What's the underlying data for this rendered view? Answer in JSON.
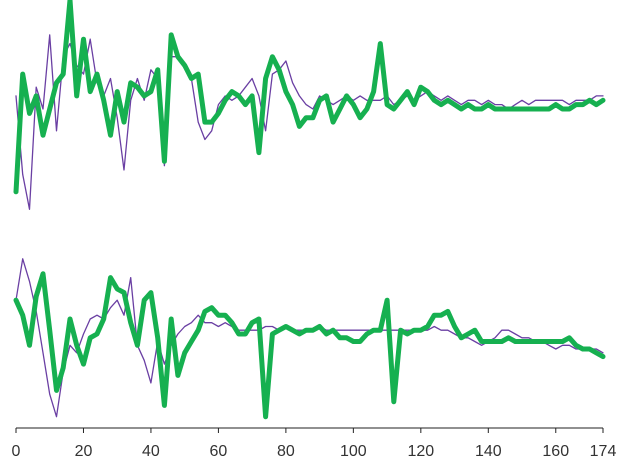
{
  "chart_data": {
    "type": "line",
    "grid": false,
    "legend": "none",
    "xlim": [
      0,
      174
    ],
    "x_ticks": [
      0,
      20,
      40,
      60,
      80,
      100,
      120,
      140,
      160,
      174
    ],
    "x_tick_labels": [
      "0",
      "20",
      "40",
      "60",
      "80",
      "100",
      "120",
      "140",
      "160",
      "174"
    ],
    "colors": {
      "thin": "#6a3fa3",
      "thick": "#16b050",
      "axis": "#222222"
    },
    "panels": [
      {
        "ylim": [
          -2.5,
          2.5
        ],
        "series": [
          {
            "role": "thin",
            "x": [
              0,
              2,
              4,
              6,
              8,
              10,
              12,
              14,
              16,
              18,
              20,
              22,
              24,
              26,
              28,
              30,
              32,
              34,
              36,
              38,
              40,
              42,
              44,
              46,
              48,
              50,
              52,
              54,
              56,
              58,
              60,
              62,
              64,
              66,
              68,
              70,
              72,
              74,
              76,
              78,
              80,
              82,
              84,
              86,
              88,
              90,
              92,
              94,
              96,
              98,
              100,
              102,
              104,
              106,
              108,
              110,
              112,
              114,
              116,
              118,
              120,
              122,
              124,
              126,
              128,
              130,
              132,
              134,
              136,
              138,
              140,
              142,
              144,
              146,
              148,
              150,
              152,
              154,
              156,
              158,
              160,
              162,
              164,
              166,
              168,
              170,
              172,
              174
            ],
            "y": [
              0.3,
              -1.5,
              -2.3,
              0.5,
              0.0,
              1.7,
              -0.5,
              1.2,
              1.5,
              1.0,
              0.8,
              1.6,
              0.6,
              0.3,
              0.7,
              -0.2,
              -1.4,
              0.2,
              0.7,
              0.2,
              0.9,
              0.7,
              -1.3,
              1.2,
              1.2,
              1.0,
              0.7,
              -0.3,
              -0.7,
              -0.5,
              0.1,
              0.3,
              0.2,
              0.3,
              0.5,
              0.7,
              0.3,
              -0.5,
              0.8,
              0.9,
              1.1,
              0.6,
              0.3,
              0.1,
              0.0,
              0.3,
              0.2,
              0.1,
              0.2,
              0.3,
              0.2,
              0.3,
              0.2,
              0.2,
              0.2,
              0.3,
              0.1,
              0.2,
              0.3,
              0.2,
              0.3,
              0.4,
              0.3,
              0.2,
              0.3,
              0.2,
              0.1,
              0.2,
              0.2,
              0.1,
              0.2,
              0.1,
              0.1,
              0.0,
              0.1,
              0.2,
              0.1,
              0.2,
              0.2,
              0.2,
              0.2,
              0.2,
              0.1,
              0.2,
              0.2,
              0.2,
              0.3,
              0.3
            ]
          },
          {
            "role": "thick",
            "x": [
              0,
              2,
              4,
              6,
              8,
              10,
              12,
              14,
              16,
              18,
              20,
              22,
              24,
              26,
              28,
              30,
              32,
              34,
              36,
              38,
              40,
              42,
              44,
              46,
              48,
              50,
              52,
              54,
              56,
              58,
              60,
              62,
              64,
              66,
              68,
              70,
              72,
              74,
              76,
              78,
              80,
              82,
              84,
              86,
              88,
              90,
              92,
              94,
              96,
              98,
              100,
              102,
              104,
              106,
              108,
              110,
              112,
              114,
              116,
              118,
              120,
              122,
              124,
              126,
              128,
              130,
              132,
              134,
              136,
              138,
              140,
              142,
              144,
              146,
              148,
              150,
              152,
              154,
              156,
              158,
              160,
              162,
              164,
              166,
              168,
              170,
              172,
              174
            ],
            "y": [
              -1.9,
              0.8,
              -0.1,
              0.3,
              -0.6,
              0.0,
              0.6,
              0.8,
              2.5,
              0.3,
              1.6,
              0.4,
              0.8,
              0.2,
              -0.6,
              0.4,
              -0.3,
              0.6,
              0.5,
              0.3,
              0.4,
              0.9,
              -1.2,
              1.7,
              1.2,
              1.0,
              0.7,
              0.8,
              -0.3,
              -0.3,
              -0.1,
              0.2,
              0.4,
              0.3,
              0.1,
              0.3,
              -1.0,
              0.7,
              1.2,
              0.9,
              0.4,
              0.1,
              -0.4,
              -0.2,
              -0.2,
              0.2,
              0.3,
              -0.3,
              0.0,
              0.3,
              0.1,
              -0.2,
              0.0,
              0.4,
              1.5,
              0.1,
              0.0,
              0.2,
              0.4,
              0.1,
              0.5,
              0.4,
              0.2,
              0.1,
              0.2,
              0.1,
              0.0,
              0.1,
              0.0,
              0.0,
              0.1,
              0.0,
              0.0,
              0.0,
              0.0,
              0.0,
              0.0,
              0.0,
              0.0,
              0.0,
              0.1,
              0.0,
              0.0,
              0.1,
              0.1,
              0.2,
              0.1,
              0.2
            ]
          }
        ]
      },
      {
        "ylim": [
          -2.5,
          2.5
        ],
        "series": [
          {
            "role": "thin",
            "x": [
              0,
              2,
              4,
              6,
              8,
              10,
              12,
              14,
              16,
              18,
              20,
              22,
              24,
              26,
              28,
              30,
              32,
              34,
              36,
              38,
              40,
              42,
              44,
              46,
              48,
              50,
              52,
              54,
              56,
              58,
              60,
              62,
              64,
              66,
              68,
              70,
              72,
              74,
              76,
              78,
              80,
              82,
              84,
              86,
              88,
              90,
              92,
              94,
              96,
              98,
              100,
              102,
              104,
              106,
              108,
              110,
              112,
              114,
              116,
              118,
              120,
              122,
              124,
              126,
              128,
              130,
              132,
              134,
              136,
              138,
              140,
              142,
              144,
              146,
              148,
              150,
              152,
              154,
              156,
              158,
              160,
              162,
              164,
              166,
              168,
              170,
              172,
              174
            ],
            "y": [
              0.9,
              2.0,
              1.4,
              0.6,
              -0.5,
              -1.6,
              -2.2,
              -1.0,
              -0.3,
              -0.5,
              0.0,
              0.4,
              0.5,
              0.4,
              0.7,
              0.9,
              0.5,
              1.5,
              -0.3,
              -0.7,
              -1.3,
              -0.2,
              -0.8,
              -0.3,
              0.0,
              0.2,
              0.3,
              0.5,
              0.3,
              0.3,
              0.2,
              0.3,
              0.2,
              0.1,
              0.1,
              0.1,
              0.1,
              0.2,
              0.2,
              0.1,
              0.2,
              0.1,
              0.1,
              0.1,
              0.1,
              0.2,
              0.1,
              0.1,
              0.1,
              0.1,
              0.1,
              0.1,
              0.1,
              0.1,
              0.1,
              0.1,
              0.1,
              0.1,
              0.1,
              0.1,
              0.1,
              0.1,
              0.2,
              0.1,
              0.1,
              0.0,
              -0.1,
              -0.1,
              -0.2,
              -0.3,
              -0.2,
              -0.1,
              0.1,
              0.1,
              0.0,
              -0.1,
              -0.1,
              -0.2,
              -0.2,
              -0.3,
              -0.4,
              -0.3,
              -0.3,
              -0.4,
              -0.4,
              -0.4,
              -0.4,
              -0.5
            ]
          },
          {
            "role": "thick",
            "x": [
              0,
              2,
              4,
              6,
              8,
              10,
              12,
              14,
              16,
              18,
              20,
              22,
              24,
              26,
              28,
              30,
              32,
              34,
              36,
              38,
              40,
              42,
              44,
              46,
              48,
              50,
              52,
              54,
              56,
              58,
              60,
              62,
              64,
              66,
              68,
              70,
              72,
              74,
              76,
              78,
              80,
              82,
              84,
              86,
              88,
              90,
              92,
              94,
              96,
              98,
              100,
              102,
              104,
              106,
              108,
              110,
              112,
              114,
              116,
              118,
              120,
              122,
              124,
              126,
              128,
              130,
              132,
              134,
              136,
              138,
              140,
              142,
              144,
              146,
              148,
              150,
              152,
              154,
              156,
              158,
              160,
              162,
              164,
              166,
              168,
              170,
              172,
              174
            ],
            "y": [
              0.9,
              0.5,
              -0.3,
              1.0,
              1.6,
              0.1,
              -1.5,
              -0.9,
              0.4,
              -0.3,
              -0.8,
              -0.1,
              0.0,
              0.4,
              1.5,
              1.2,
              1.1,
              0.3,
              -0.3,
              0.9,
              1.1,
              -0.1,
              -1.9,
              0.4,
              -1.1,
              -0.5,
              -0.2,
              0.1,
              0.6,
              0.7,
              0.5,
              0.5,
              0.3,
              0.0,
              0.0,
              0.3,
              0.4,
              -2.2,
              0.0,
              0.1,
              0.2,
              0.1,
              0.0,
              0.1,
              0.1,
              0.2,
              0.0,
              0.1,
              -0.1,
              -0.1,
              -0.2,
              -0.2,
              0.0,
              0.1,
              0.1,
              0.9,
              -1.8,
              0.1,
              0.0,
              0.1,
              0.1,
              0.2,
              0.5,
              0.5,
              0.6,
              0.2,
              -0.1,
              0.0,
              0.1,
              -0.2,
              -0.2,
              -0.2,
              -0.2,
              -0.1,
              -0.2,
              -0.2,
              -0.2,
              -0.2,
              -0.2,
              -0.2,
              -0.2,
              -0.2,
              -0.1,
              -0.3,
              -0.4,
              -0.4,
              -0.5,
              -0.6
            ]
          }
        ]
      }
    ]
  }
}
